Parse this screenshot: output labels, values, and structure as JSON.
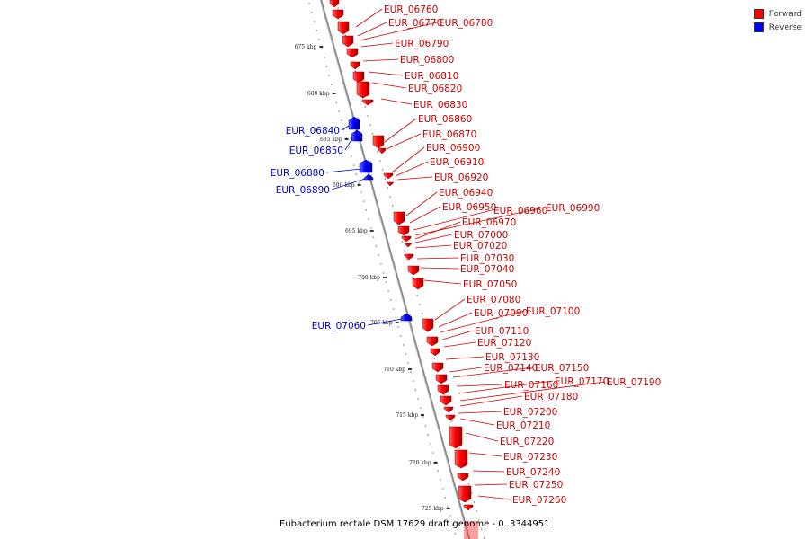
{
  "legend": {
    "forward_label": "Forward",
    "reverse_label": "Reverse",
    "forward_color": "#ff0000",
    "reverse_color": "#0000ff"
  },
  "caption": "Eubacterium rectale DSM 17629 draft genome - 0..3344951",
  "axis": {
    "ticks": [
      "675 kbp",
      "680 kbp",
      "685 kbp",
      "690 kbp",
      "695 kbp",
      "700 kbp",
      "705 kbp",
      "710 kbp",
      "715 kbp",
      "720 kbp",
      "725 kbp"
    ]
  },
  "reverse_genes": [
    "EUR_06840",
    "EUR_06850",
    "EUR_06880",
    "EUR_06890",
    "EUR_07060"
  ],
  "forward_genes": [
    "EUR_06760",
    "EUR_06770",
    "EUR_06780",
    "EUR_06790",
    "EUR_06800",
    "EUR_06810",
    "EUR_06820",
    "EUR_06830",
    "EUR_06860",
    "EUR_06870",
    "EUR_06900",
    "EUR_06910",
    "EUR_06920",
    "EUR_06940",
    "EUR_06950",
    "EUR_06960",
    "EUR_06990",
    "EUR_06970",
    "EUR_07000",
    "EUR_07020",
    "EUR_07030",
    "EUR_07040",
    "EUR_07050",
    "EUR_07080",
    "EUR_07090",
    "EUR_07100",
    "EUR_07110",
    "EUR_07120",
    "EUR_07130",
    "EUR_07140",
    "EUR_07150",
    "EUR_07160",
    "EUR_07170",
    "EUR_07190",
    "EUR_07180",
    "EUR_07200",
    "EUR_07210",
    "EUR_07220",
    "EUR_07230",
    "EUR_07240",
    "EUR_07250",
    "EUR_07260"
  ]
}
